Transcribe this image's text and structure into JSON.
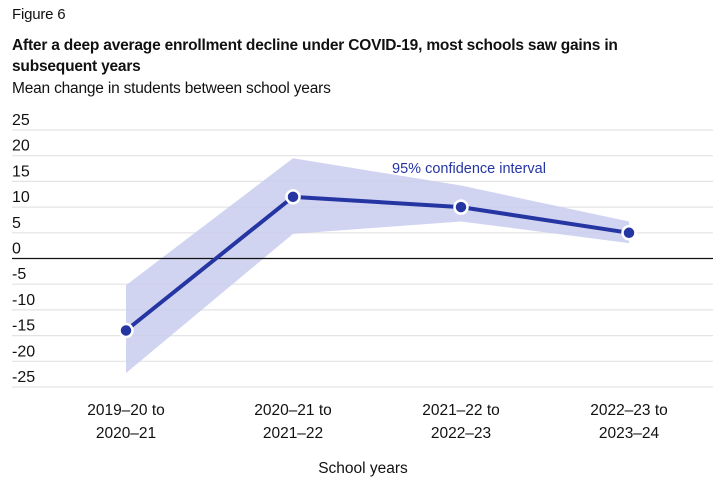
{
  "figure_label": "Figure 6",
  "colors": {
    "line": "#2536a3",
    "band": "#c9cdee",
    "annotation": "#2536a3",
    "grid": "#e3e3e3",
    "zero_line": "#111111"
  },
  "chart_data": {
    "type": "line",
    "title": "After a deep average enrollment decline under COVID-19, most schools saw gains in subsequent years",
    "subtitle": "Mean change in students between school years",
    "xlabel": "School years",
    "ylabel": "Mean change in students between school years",
    "categories": [
      [
        "2019–20 to",
        "2020–21"
      ],
      [
        "2020–21 to",
        "2021–22"
      ],
      [
        "2021–22 to",
        "2022–23"
      ],
      [
        "2022–23 to",
        "2023–24"
      ]
    ],
    "series": [
      {
        "name": "Mean change",
        "values": [
          -14,
          12,
          10,
          5
        ],
        "ci_lower": [
          -22.3,
          4.8,
          7.2,
          3
        ],
        "ci_upper": [
          -5.2,
          19.5,
          14.2,
          7.2
        ]
      }
    ],
    "ylim": [
      -25,
      25
    ],
    "yticks": [
      25,
      20,
      15,
      10,
      5,
      0,
      -5,
      -10,
      -15,
      -20,
      -25
    ],
    "grid": true,
    "annotations": [
      {
        "text": "95% confidence interval",
        "near": "category 3, above band"
      }
    ],
    "legend": "none"
  }
}
